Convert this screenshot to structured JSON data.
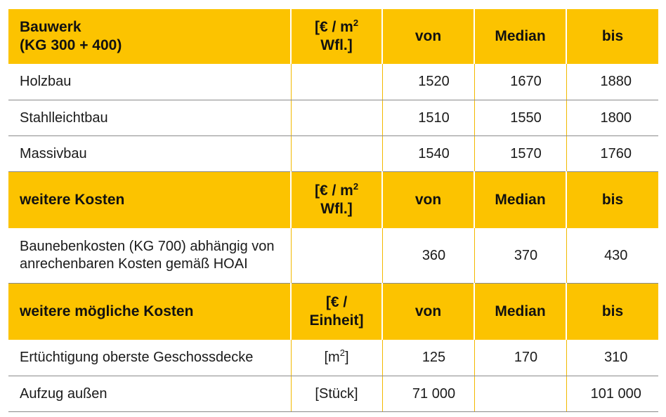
{
  "sections": [
    {
      "header": {
        "title_line1": "Bauwerk",
        "title_line2": "(KG 300 + 400)",
        "unit_prefix": "[€ / m",
        "unit_sup": "2",
        "unit_line2": "Wfl.]",
        "von": "von",
        "median": "Median",
        "bis": "bis"
      },
      "rows": [
        {
          "label": "Holzbau",
          "unit": "",
          "von": "1520",
          "median": "1670",
          "bis": "1880"
        },
        {
          "label": "Stahlleichtbau",
          "unit": "",
          "von": "1510",
          "median": "1550",
          "bis": "1800"
        },
        {
          "label": "Massivbau",
          "unit": "",
          "von": "1540",
          "median": "1570",
          "bis": "1760"
        }
      ]
    },
    {
      "header": {
        "title_line1": "weitere Kosten",
        "unit_prefix": "[€ / m",
        "unit_sup": "2",
        "unit_line2": "Wfl.]",
        "von": "von",
        "median": "Median",
        "bis": "bis"
      },
      "rows": [
        {
          "label_line1": "Baunebenkosten (KG 700) abhängig von",
          "label_line2": "anrechenbaren Kosten gemäß HOAI",
          "unit": "",
          "von": "360",
          "median": "370",
          "bis": "430"
        }
      ]
    },
    {
      "header": {
        "title_line1": "weitere mögliche Kosten",
        "unit_line1": "[€ /",
        "unit_line2": "Einheit]",
        "von": "von",
        "median": "Median",
        "bis": "bis"
      },
      "rows": [
        {
          "label": "Ertüchtigung oberste Geschossdecke",
          "unit_prefix": "[m",
          "unit_sup": "2",
          "unit_suffix": "]",
          "von": "125",
          "median": "170",
          "bis": "310"
        },
        {
          "label": "Aufzug außen",
          "unit": "[Stück]",
          "von": "71 000",
          "median": "",
          "bis": "101 000"
        }
      ]
    }
  ],
  "colors": {
    "header_bg": "#fcc300",
    "row_bg": "#ffffff",
    "text": "#1a1a1a",
    "rule": "#8a8a8a"
  }
}
